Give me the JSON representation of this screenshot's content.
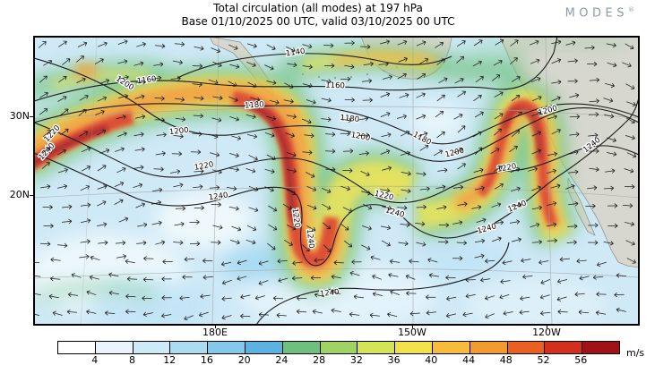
{
  "header": {
    "title": "Total circulation (all modes) at 197 hPa",
    "subtitle": "Base 01/10/2025 00 UTC, valid 03/10/2025 00 UTC",
    "logo_text": "MODES",
    "logo_mark": "®"
  },
  "map": {
    "lat_labels": [
      "30N",
      "20N"
    ],
    "lon_labels": [
      "180E",
      "150W",
      "120W"
    ],
    "contour_labels": [
      "1140",
      "1160",
      "1180",
      "1200",
      "1220",
      "1240"
    ]
  },
  "colorbar": {
    "unit": "m/s",
    "ticks": [
      "4",
      "8",
      "12",
      "16",
      "20",
      "24",
      "28",
      "32",
      "36",
      "40",
      "44",
      "48",
      "52",
      "56"
    ],
    "colors": [
      "#ffffff",
      "#e8f6fc",
      "#cdeaf8",
      "#aadcf3",
      "#83c9eb",
      "#5cb3e1",
      "#6ec17c",
      "#9fd465",
      "#d4e455",
      "#f2e148",
      "#f7bd3a",
      "#f29a2e",
      "#e96020",
      "#d22f1c",
      "#a01014"
    ]
  },
  "chart_data": {
    "type": "heatmap",
    "title": "Total circulation (all modes) at 197 hPa",
    "subtitle": "Base 01/10/2025 00 UTC, valid 03/10/2025 00 UTC",
    "field": "total circulation wind speed",
    "unit": "m/s",
    "colorbar_levels": [
      4,
      8,
      12,
      16,
      20,
      24,
      28,
      32,
      36,
      40,
      44,
      48,
      52,
      56
    ],
    "colorbar_colors": [
      "#ffffff",
      "#e8f6fc",
      "#cdeaf8",
      "#aadcf3",
      "#83c9eb",
      "#5cb3e1",
      "#6ec17c",
      "#9fd465",
      "#d4e455",
      "#f2e148",
      "#f7bd3a",
      "#f29a2e",
      "#e96020",
      "#d22f1c",
      "#a01014"
    ],
    "contour_overlay": {
      "levels": [
        1140,
        1160,
        1180,
        1200,
        1220,
        1240
      ]
    },
    "vector_overlay": "wind direction arrows",
    "x_axis": {
      "ticks": [
        "180E",
        "150W",
        "120W"
      ]
    },
    "y_axis": {
      "ticks": [
        "30N",
        "20N"
      ]
    },
    "region": "North Pacific and western North America",
    "jet_maxima": [
      {
        "location": "western map edge near 30N",
        "peak_speed_mps": ">56"
      },
      {
        "location": "central Pacific near dateline, 25-35N, with trough tongue to ~20N",
        "peak_speed_mps": ">56"
      },
      {
        "location": "eastern Pacific ~140-135W, 20-35N ridge",
        "peak_speed_mps": ">56"
      }
    ]
  }
}
